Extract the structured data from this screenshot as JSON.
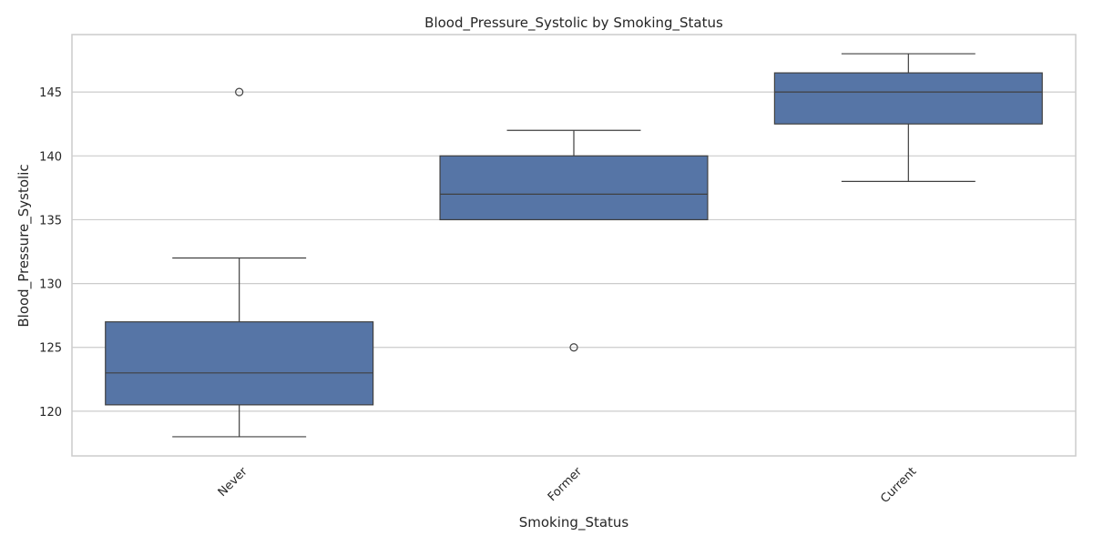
{
  "chart_data": {
    "type": "box",
    "title": "Blood_Pressure_Systolic by Smoking_Status",
    "xlabel": "Smoking_Status",
    "ylabel": "Blood_Pressure_Systolic",
    "ylim": [
      116.5,
      149.5
    ],
    "yticks": [
      120,
      125,
      130,
      135,
      140,
      145
    ],
    "grid": true,
    "box_color": "#5675a6",
    "line_color": "#404040",
    "grid_color": "#cccccc",
    "categories": [
      "Never",
      "Former",
      "Current"
    ],
    "boxes": [
      {
        "category": "Never",
        "whisker_low": 118,
        "q1": 120.5,
        "median": 123,
        "q3": 127,
        "whisker_high": 132,
        "outliers": [
          145
        ]
      },
      {
        "category": "Former",
        "whisker_low": 135,
        "q1": 135,
        "median": 137,
        "q3": 140,
        "whisker_high": 142,
        "outliers": [
          125
        ]
      },
      {
        "category": "Current",
        "whisker_low": 138,
        "q1": 142.5,
        "median": 145,
        "q3": 146.5,
        "whisker_high": 148,
        "outliers": []
      }
    ]
  }
}
